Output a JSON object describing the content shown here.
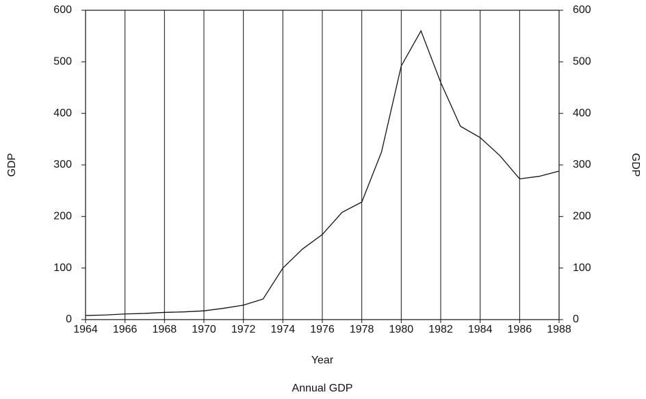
{
  "chart_data": {
    "type": "line",
    "title": "Annual GDP",
    "x_label": "Year",
    "y_label": "GDP",
    "y2_label": "GDP",
    "x": [
      1964,
      1965,
      1966,
      1967,
      1968,
      1969,
      1970,
      1971,
      1972,
      1973,
      1974,
      1975,
      1976,
      1977,
      1978,
      1979,
      1980,
      1981,
      1982,
      1983,
      1984,
      1985,
      1986,
      1987,
      1988
    ],
    "values": [
      8,
      9,
      11,
      12,
      14,
      15,
      17,
      22,
      28,
      40,
      100,
      137,
      165,
      208,
      228,
      325,
      492,
      560,
      460,
      375,
      353,
      318,
      273,
      278,
      288
    ],
    "color": "#111111",
    "xlim": [
      1964,
      1988
    ],
    "xticks": [
      1964,
      1966,
      1968,
      1970,
      1972,
      1974,
      1976,
      1978,
      1980,
      1982,
      1984,
      1986,
      1988
    ],
    "ylim": [
      0,
      600
    ],
    "yticks": [
      0,
      100,
      200,
      300,
      400,
      500,
      600
    ],
    "y2lim": [
      0,
      600
    ],
    "y2ticks": [
      0,
      100,
      200,
      300,
      400,
      500,
      600
    ],
    "xgrid": true
  }
}
